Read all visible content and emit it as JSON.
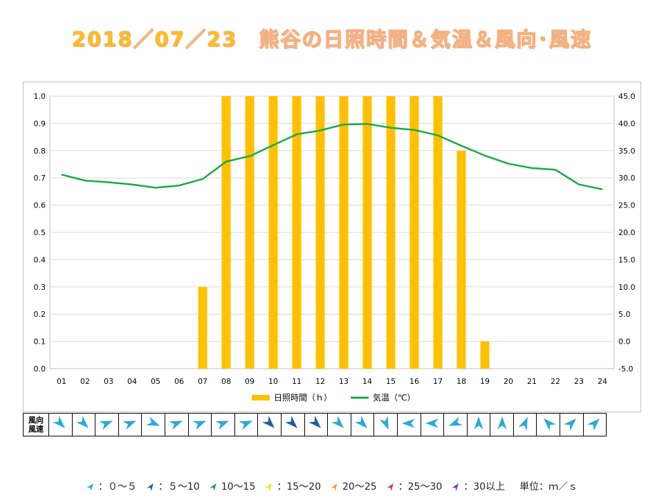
{
  "page_title": "2018／07／23　熊谷の日照時間＆気温＆風向･風速",
  "colors": {
    "sunshine_bar": "#ffc000",
    "temperature_line": "#17a945",
    "gridline": "#d9d9d9",
    "wind_0_5": "#29a8e0",
    "wind_5_10": "#1f5f9e",
    "wind_10_15": "#17a945",
    "wind_15_20": "#f2e600",
    "wind_20_25": "#f5a623",
    "wind_25_30": "#e53935",
    "wind_30_plus": "#7b3fa0"
  },
  "chart_data": {
    "type": "bar",
    "categories": [
      "01",
      "02",
      "03",
      "04",
      "05",
      "06",
      "07",
      "08",
      "09",
      "10",
      "11",
      "12",
      "13",
      "14",
      "15",
      "16",
      "17",
      "18",
      "19",
      "20",
      "21",
      "22",
      "23",
      "24"
    ],
    "series": [
      {
        "name": "日照時間（ｈ）",
        "type": "bar",
        "axis": "left",
        "values": [
          0,
          0,
          0,
          0,
          0,
          0,
          0.3,
          1.0,
          1.0,
          1.0,
          1.0,
          1.0,
          1.0,
          1.0,
          1.0,
          1.0,
          1.0,
          0.8,
          0.1,
          0,
          0,
          0,
          0,
          0
        ]
      },
      {
        "name": "気温（℃）",
        "type": "line",
        "axis": "right",
        "values": [
          30.6,
          29.5,
          29.2,
          28.8,
          28.2,
          28.6,
          29.8,
          33.0,
          34.0,
          36.0,
          38.0,
          38.7,
          39.8,
          39.9,
          39.2,
          38.8,
          37.8,
          35.9,
          34.1,
          32.6,
          31.8,
          31.5,
          28.8,
          27.9
        ]
      }
    ],
    "y_left": {
      "range": [
        0,
        1.0
      ],
      "ticks": [
        "0.0",
        "0.1",
        "0.2",
        "0.3",
        "0.4",
        "0.5",
        "0.6",
        "0.7",
        "0.8",
        "0.9",
        "1.0"
      ]
    },
    "y_right": {
      "range": [
        -5,
        45
      ],
      "ticks": [
        "-5.0",
        "0.0",
        "5.0",
        "10.0",
        "15.0",
        "20.0",
        "25.0",
        "30.0",
        "35.0",
        "40.0",
        "45.0"
      ]
    },
    "grid": true,
    "legend_position": "bottom"
  },
  "wind": {
    "label_line1": "風向",
    "label_line2": "風速",
    "hours": [
      {
        "direction": "NW",
        "speed_class": "0-5"
      },
      {
        "direction": "NW",
        "speed_class": "0-5"
      },
      {
        "direction": "WSW",
        "speed_class": "0-5"
      },
      {
        "direction": "WSW",
        "speed_class": "0-5"
      },
      {
        "direction": "WNW",
        "speed_class": "0-5"
      },
      {
        "direction": "WSW",
        "speed_class": "0-5"
      },
      {
        "direction": "WSW",
        "speed_class": "0-5"
      },
      {
        "direction": "WSW",
        "speed_class": "0-5"
      },
      {
        "direction": "WSW",
        "speed_class": "0-5"
      },
      {
        "direction": "NW",
        "speed_class": "5-10"
      },
      {
        "direction": "NW",
        "speed_class": "5-10"
      },
      {
        "direction": "NW",
        "speed_class": "5-10"
      },
      {
        "direction": "NW",
        "speed_class": "0-5"
      },
      {
        "direction": "NW",
        "speed_class": "0-5"
      },
      {
        "direction": "NNW",
        "speed_class": "0-5"
      },
      {
        "direction": "E",
        "speed_class": "0-5"
      },
      {
        "direction": "E",
        "speed_class": "0-5"
      },
      {
        "direction": "ENE",
        "speed_class": "0-5"
      },
      {
        "direction": "S",
        "speed_class": "0-5"
      },
      {
        "direction": "S",
        "speed_class": "0-5"
      },
      {
        "direction": "SSW",
        "speed_class": "0-5"
      },
      {
        "direction": "SE",
        "speed_class": "0-5"
      },
      {
        "direction": "SW",
        "speed_class": "0-5"
      },
      {
        "direction": "SW",
        "speed_class": "0-5"
      }
    ]
  },
  "wind_legend": [
    {
      "label": "：０～５",
      "color_key": "wind_0_5"
    },
    {
      "label": "：５～10",
      "color_key": "wind_5_10"
    },
    {
      "label": "10～15",
      "color_key": "wind_10_15"
    },
    {
      "label": "：15～20",
      "color_key": "wind_15_20"
    },
    {
      "label": "20～25",
      "color_key": "wind_20_25"
    },
    {
      "label": "：25～30",
      "color_key": "wind_25_30"
    },
    {
      "label": "：30以上",
      "color_key": "wind_30_plus"
    }
  ],
  "unit_label": "単位：ｍ／ｓ"
}
